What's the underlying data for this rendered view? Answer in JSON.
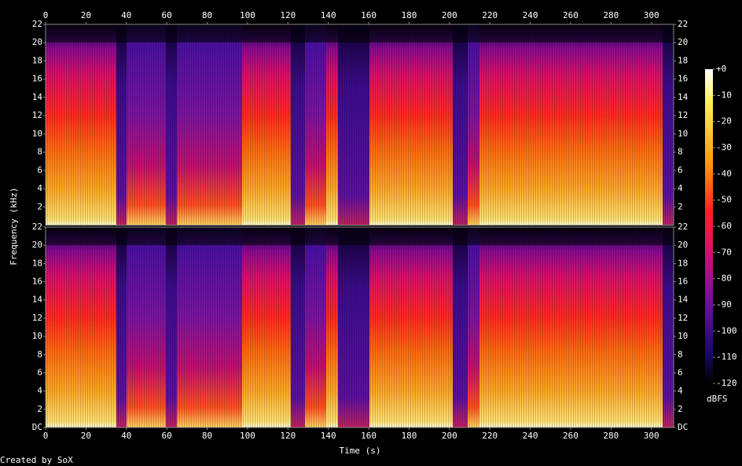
{
  "chart_data": {
    "type": "spectrogram",
    "xlabel": "Time (s)",
    "ylabel": "Frequency (kHz)",
    "xlim": [
      0,
      311
    ],
    "xticks": [
      0,
      20,
      40,
      60,
      80,
      100,
      120,
      140,
      160,
      180,
      200,
      220,
      240,
      260,
      280,
      300
    ],
    "panels": [
      {
        "ylim": [
          0,
          22
        ],
        "yticks": [
          2,
          4,
          6,
          8,
          10,
          12,
          14,
          16,
          18,
          20,
          22
        ]
      },
      {
        "ylim": [
          0,
          22
        ],
        "yticks": [
          {
            "value": 0,
            "label": "DC"
          },
          2,
          4,
          6,
          8,
          10,
          12,
          14,
          16,
          18,
          20,
          22
        ]
      }
    ],
    "colorbar": {
      "zlim": [
        -120,
        0
      ],
      "label": "dBFS",
      "zticks": [
        {
          "value": 0,
          "label": "+0"
        },
        -10,
        -20,
        -30,
        -40,
        -50,
        -60,
        -70,
        -80,
        -90,
        -100,
        -110,
        -120
      ]
    },
    "footer": "Created by SoX"
  }
}
